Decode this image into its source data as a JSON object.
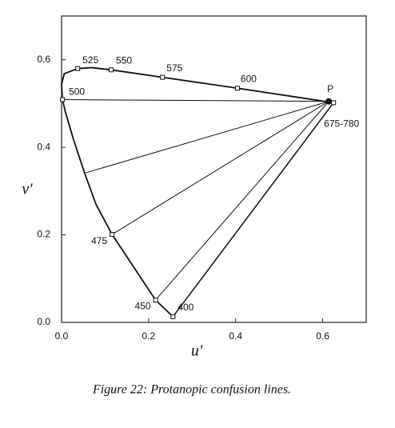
{
  "chart_data": {
    "type": "chromaticity",
    "caption": "Figure 22:  Protanopic confusion lines.",
    "xlabel": "u′",
    "ylabel": "v′",
    "xlim": [
      0,
      0.7
    ],
    "ylim": [
      0,
      0.7
    ],
    "xticks": [
      {
        "value": 0,
        "label": "0.0"
      },
      0.2,
      0.4,
      0.6
    ],
    "yticks": [
      {
        "value": 0,
        "label": "0.0"
      },
      0.2,
      0.4,
      0.6
    ],
    "locus": {
      "u": [
        0.256,
        0.216,
        0.116,
        0.079,
        0.053,
        0.028,
        0.009,
        0.002,
        0,
        0.006,
        0.037,
        0.07,
        0.114,
        0.232,
        0.404,
        0.625
      ],
      "v": [
        0.013,
        0.051,
        0.201,
        0.27,
        0.341,
        0.416,
        0.48,
        0.509,
        0.544,
        0.568,
        0.58,
        0.582,
        0.577,
        0.56,
        0.535,
        0.502
      ],
      "labels": [
        "400",
        "450",
        "475",
        null,
        null,
        null,
        null,
        "500",
        null,
        null,
        "525",
        null,
        "550",
        "575",
        "600",
        "675-780"
      ]
    },
    "copunctal_point": {
      "label": "P",
      "u": 0.614,
      "v": 0.505
    },
    "confusion_line_ends": {
      "u": [
        0.002,
        0.053,
        0.116,
        0.216
      ],
      "v": [
        0.509,
        0.341,
        0.201,
        0.051
      ]
    }
  }
}
